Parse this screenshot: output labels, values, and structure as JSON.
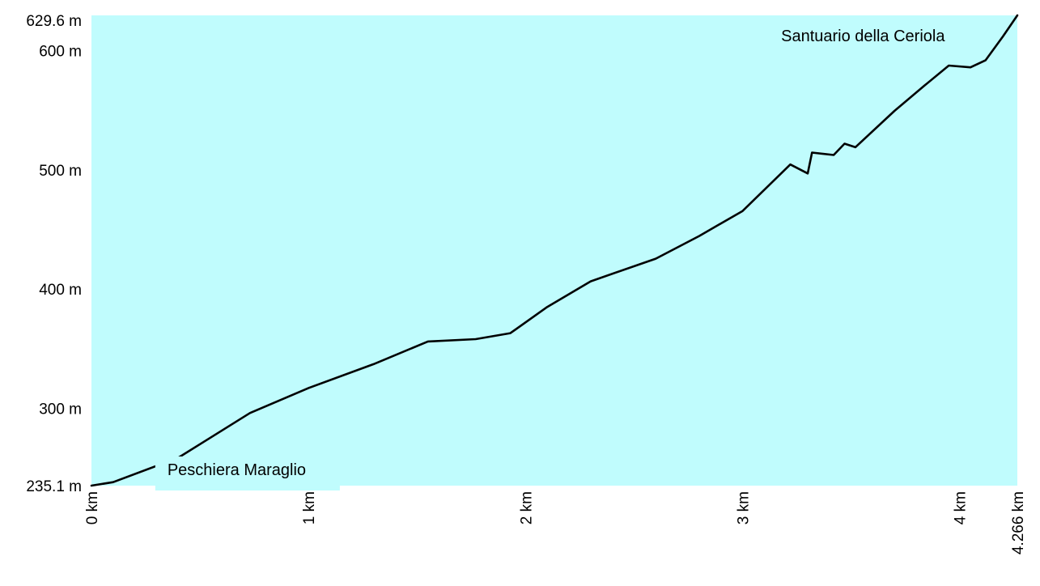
{
  "chart_data": {
    "type": "area",
    "title": "",
    "xlabel": "",
    "ylabel": "",
    "xlim": [
      0,
      4.266
    ],
    "ylim": [
      235.1,
      629.6
    ],
    "x": [
      0,
      0.1,
      0.4,
      0.73,
      1.0,
      1.3,
      1.55,
      1.77,
      1.93,
      2.1,
      2.3,
      2.6,
      2.8,
      3.0,
      3.22,
      3.3,
      3.32,
      3.42,
      3.47,
      3.52,
      3.7,
      3.84,
      3.95,
      4.05,
      4.12,
      4.2,
      4.266
    ],
    "y": [
      235.1,
      238.0,
      258.5,
      296.0,
      317.0,
      337.0,
      356.0,
      358.0,
      363.0,
      385.0,
      406.5,
      425.5,
      444.5,
      465.5,
      504.5,
      497.0,
      514.5,
      512.5,
      522.0,
      519.0,
      549.5,
      571.0,
      587.5,
      586.0,
      592.0,
      612.0,
      629.6
    ],
    "y_tick_labels": [
      {
        "value": 629.6,
        "label": "629.6 m"
      },
      {
        "value": 600,
        "label": "600 m"
      },
      {
        "value": 500,
        "label": "500 m"
      },
      {
        "value": 400,
        "label": "400 m"
      },
      {
        "value": 300,
        "label": "300 m"
      },
      {
        "value": 235.1,
        "label": "235.1 m"
      }
    ],
    "x_tick_labels": [
      {
        "value": 0,
        "label": "0 km"
      },
      {
        "value": 1,
        "label": "1 km"
      },
      {
        "value": 2,
        "label": "2 km"
      },
      {
        "value": 3,
        "label": "3 km"
      },
      {
        "value": 4,
        "label": "4 km"
      },
      {
        "value": 4.266,
        "label": "4.266 km"
      }
    ],
    "annotations": [
      {
        "text": "Peschiera Maraglio",
        "x": 0.35,
        "y": 235.1
      },
      {
        "text": "Santuario della Ceriola",
        "x": 3.2,
        "y": 629.6
      }
    ],
    "fill_color": "#c0fcfd",
    "line_color": "#000000",
    "grid": false,
    "legend": "none"
  }
}
